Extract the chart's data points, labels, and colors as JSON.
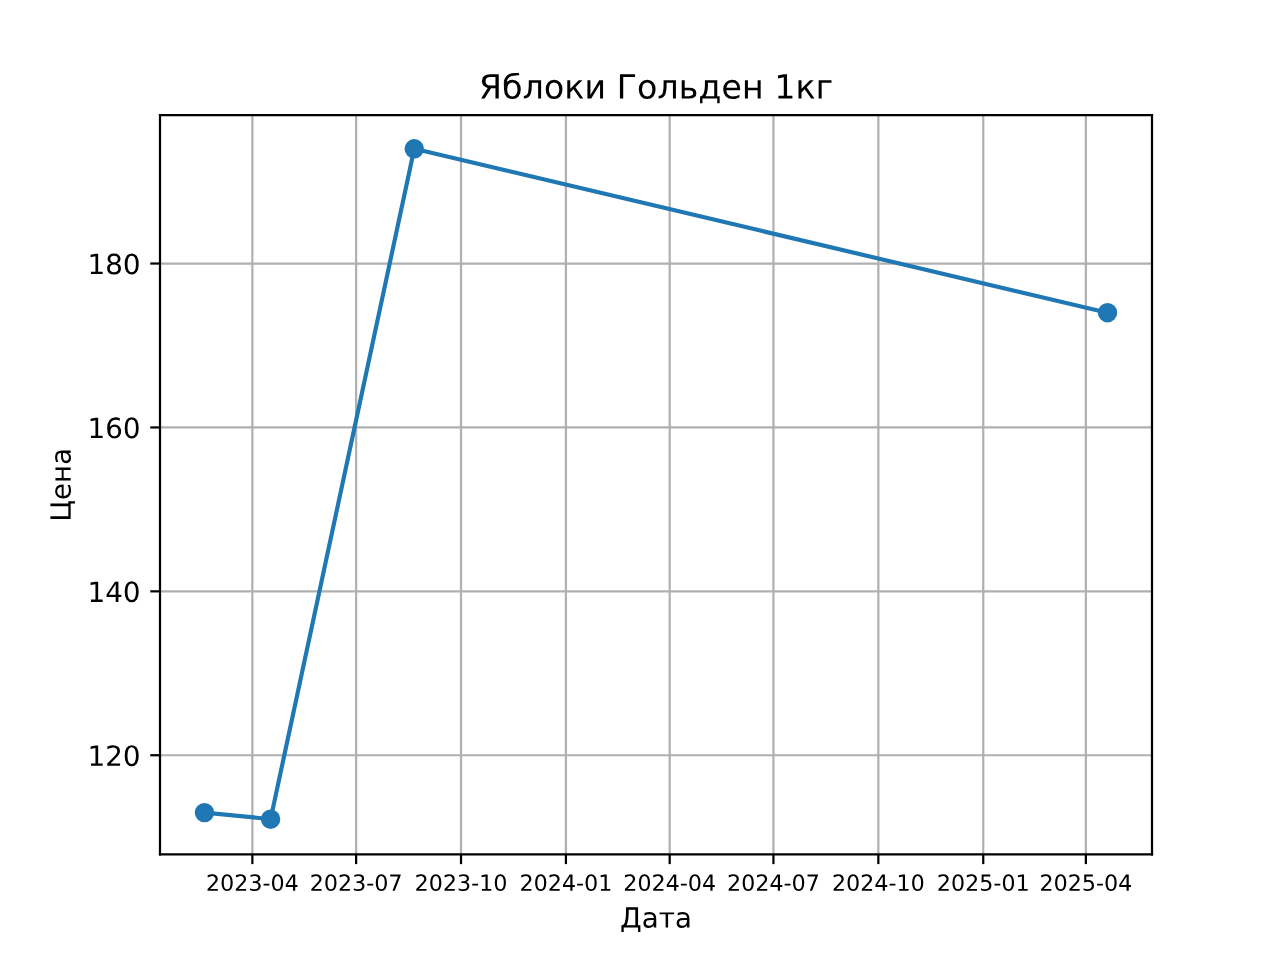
{
  "chart_data": {
    "type": "line",
    "title": "Яблоки Гольден 1кг",
    "xlabel": "Дата",
    "ylabel": "Цена",
    "x": [
      "2023-02-18",
      "2023-04-17",
      "2023-08-21",
      "2025-04-20"
    ],
    "series": [
      {
        "color": "#1f77b4",
        "values": [
          113,
          112.2,
          194,
          174
        ]
      }
    ],
    "xlim": [
      "2023-01-10",
      "2025-05-29"
    ],
    "xticks": [
      "2023-04",
      "2023-07",
      "2023-10",
      "2024-01",
      "2024-04",
      "2024-07",
      "2024-10",
      "2025-01",
      "2025-04"
    ],
    "ylim": [
      107.9,
      198.1
    ],
    "yticks": [
      120,
      140,
      160,
      180
    ],
    "grid": true,
    "marker": "circle",
    "line_style": "solid"
  }
}
